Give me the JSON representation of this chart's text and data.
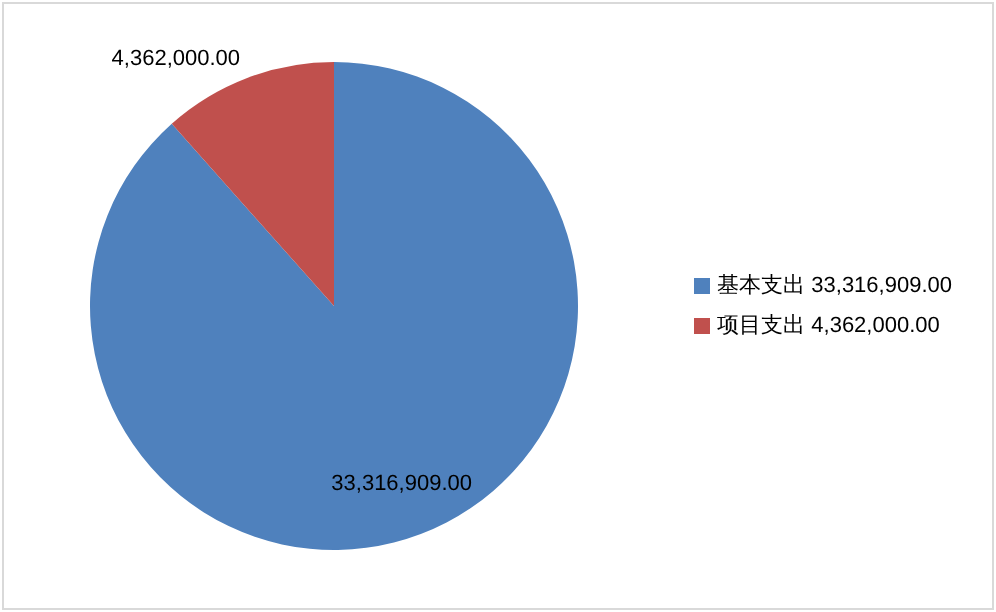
{
  "chart_data": {
    "type": "pie",
    "categories": [
      "基本支出",
      "项目支出"
    ],
    "values": [
      33316909,
      4362000
    ],
    "value_labels": [
      "33,316,909.00",
      "4,362,000.00"
    ],
    "colors": [
      "#4f81bd",
      "#c0504d"
    ],
    "legend": "right"
  }
}
